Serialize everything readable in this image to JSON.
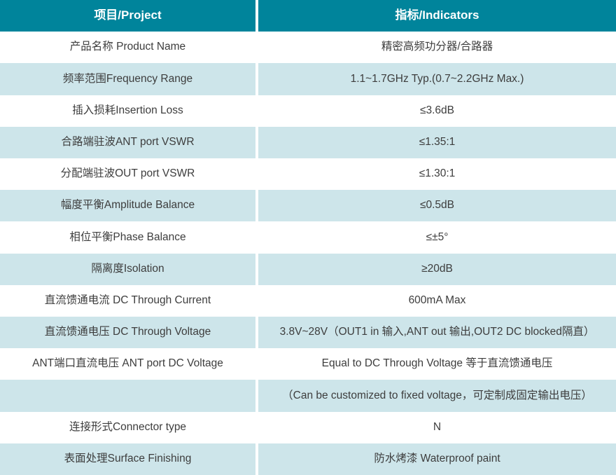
{
  "table": {
    "header": {
      "project": "项目/Project",
      "indicator": "指标/Indicators"
    },
    "rows": [
      {
        "project": "产品名称 Product Name",
        "indicator": "精密高频功分器/合路器"
      },
      {
        "project": "频率范围Frequency Range",
        "indicator": "1.1~1.7GHz Typ.(0.7~2.2GHz Max.)"
      },
      {
        "project": "插入损耗Insertion Loss",
        "indicator": "≤3.6dB"
      },
      {
        "project": "合路端驻波ANT port VSWR",
        "indicator": "≤1.35:1"
      },
      {
        "project": "分配端驻波OUT port VSWR",
        "indicator": "≤1.30:1"
      },
      {
        "project": "幅度平衡Amplitude Balance",
        "indicator": "≤0.5dB"
      },
      {
        "project": "相位平衡Phase Balance",
        "indicator": "≤±5°"
      },
      {
        "project": "隔离度Isolation",
        "indicator": "≥20dB"
      },
      {
        "project": "直流馈通电流 DC Through Current",
        "indicator": "600mA Max"
      },
      {
        "project": "直流馈通电压 DC Through Voltage",
        "indicator": "3.8V~28V（OUT1 in 输入,ANT out 输出,OUT2 DC blocked隔直）"
      },
      {
        "project": "ANT端口直流电压 ANT port DC Voltage",
        "indicator": "Equal to DC Through Voltage 等于直流馈通电压"
      },
      {
        "project": "",
        "indicator": "（Can be customized to fixed voltage，可定制成固定输出电压）"
      },
      {
        "project": "连接形式Connector type",
        "indicator": "N"
      },
      {
        "project": "表面处理Surface Finishing",
        "indicator": "防水烤漆 Waterproof paint"
      }
    ],
    "colors": {
      "header_bg": "#00849b",
      "header_text": "#ffffff",
      "row_alt_bg": "#cde5ea",
      "row_bg": "#ffffff",
      "body_text": "#3d3d3d"
    }
  }
}
